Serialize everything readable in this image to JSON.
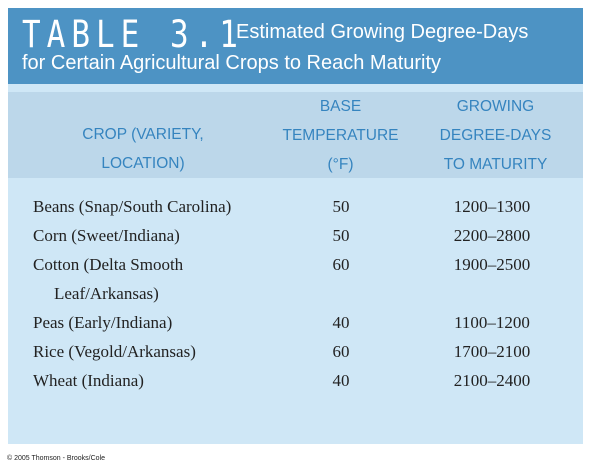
{
  "title": {
    "table_number": "TABLE 3.1",
    "line1": "Estimated Growing Degree-Days",
    "line2": "for Certain Agricultural Crops to Reach Maturity"
  },
  "headers": {
    "crop": [
      "CROP (VARIETY,",
      "LOCATION)"
    ],
    "base_temperature": [
      "BASE",
      "TEMPERATURE",
      "(°F)"
    ],
    "growing_degree_days": [
      "GROWING",
      "DEGREE-DAYS",
      "TO MATURITY"
    ]
  },
  "rows": [
    {
      "crop": "Beans (Snap/South Carolina)",
      "base": "50",
      "gdd": "1200–1300"
    },
    {
      "crop": "Corn (Sweet/Indiana)",
      "base": "50",
      "gdd": "2200–2800"
    },
    {
      "crop": "Cotton (Delta Smooth Leaf/Arkansas)",
      "base": "60",
      "gdd": "1900–2500"
    },
    {
      "crop": "Peas (Early/Indiana)",
      "base": "40",
      "gdd": "1100–1200"
    },
    {
      "crop": "Rice (Vegold/Arkansas)",
      "base": "60",
      "gdd": "1700–2100"
    },
    {
      "crop": "Wheat (Indiana)",
      "base": "40",
      "gdd": "2100–2400"
    }
  ],
  "footer": "© 2005 Thomson - Brooks/Cole",
  "colors": {
    "title_bar": "#4d93c4",
    "header_band": "#bcd7ea",
    "body_background": "#cfe7f6",
    "header_text": "#3584bf"
  }
}
